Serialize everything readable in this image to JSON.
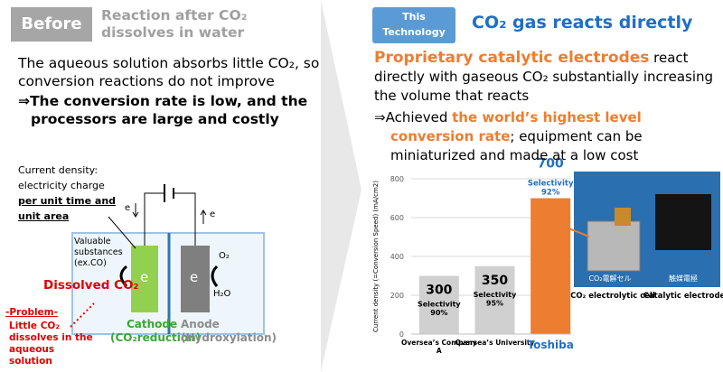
{
  "left": {
    "badge": "Before",
    "heading": "Reaction after CO₂ dissolves in water",
    "body": "The aqueous solution absorbs little CO₂, so conversion reactions do not improve",
    "conclusion": "⇒The conversion rate is low, and the processors are large and costly",
    "diagram": {
      "current_density": "Current density: electricity charge",
      "per_unit": "per unit time and unit area",
      "electron_left": "e",
      "electron_right": "e",
      "valuable": "Valuable substances (ex.CO)",
      "dissolved": "Dissolved CO₂",
      "cathode_e": "e",
      "anode_e": "e",
      "o2": "O₂",
      "h2o": "H₂O",
      "cathode": "Cathode",
      "cathode_note": "(CO₂reduction)",
      "anode": "Anode",
      "anode_note": "(Hydroxylation)",
      "problem": "-Problem-",
      "problem_text": "Little CO₂ dissolves in the aqueous solution"
    }
  },
  "right": {
    "badge": "This Technology",
    "heading": "CO₂ gas reacts directly",
    "body_highlight": "Proprietary catalytic electrodes",
    "body_rest": " react directly with gaseous CO₂ substantially increasing the volume that reacts",
    "result_prefix": "⇒Achieved ",
    "result_highlight": "the world’s highest level conversion rate",
    "result_rest": "; equipment can be miniaturized and made at a low cost",
    "photo_label_cell": "CO₂電解セル",
    "photo_label_electrode": "触媒電極",
    "caption_cell": "CO₂ electrolytic cell",
    "caption_electrode": "Catalytic electrode"
  },
  "chart_data": {
    "type": "bar",
    "y_label": "Current density (=Conversion Speed) (mA/cm2)",
    "categories": [
      "Oversea’s Company A",
      "Oversea’s University",
      "Toshiba"
    ],
    "values": [
      300,
      350,
      700
    ],
    "annotations": [
      "Selectivity 90%",
      "Selectivity 95%",
      "Selectivity 92%"
    ],
    "colors": [
      "#d0d0d0",
      "#d0d0d0",
      "#ed7d31"
    ],
    "ylim": [
      0,
      800
    ],
    "yticks": [
      0,
      200,
      400,
      600,
      800
    ],
    "grid": true
  }
}
